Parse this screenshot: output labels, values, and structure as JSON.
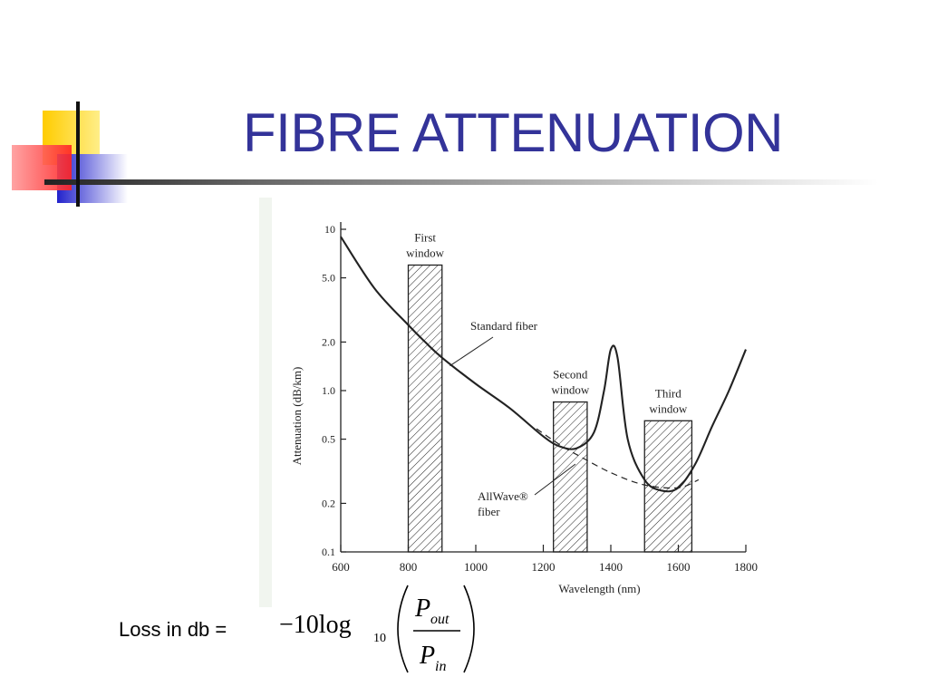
{
  "slide": {
    "title": "FIBRE ATTENUATION",
    "accent_color": "#333399",
    "decor_colors": [
      "#ffcc00",
      "#ff3333",
      "#3333cc"
    ]
  },
  "chart_data": {
    "type": "line",
    "xlabel": "Wavelength (nm)",
    "ylabel": "Attenuation (dB/km)",
    "xlim": [
      600,
      1800
    ],
    "ylim": [
      0.1,
      10
    ],
    "yscale": "log",
    "grid": false,
    "x_ticks": [
      "600",
      "800",
      "1000",
      "1200",
      "1400",
      "1600",
      "1800"
    ],
    "x_tick_values": [
      600,
      800,
      1000,
      1200,
      1400,
      1600,
      1800
    ],
    "y_ticks": [
      "0.1",
      "0.2",
      "0.5",
      "1.0",
      "2.0",
      "5.0",
      "10"
    ],
    "y_tick_values": [
      0.1,
      0.2,
      0.5,
      1.0,
      2.0,
      5.0,
      10
    ],
    "series": [
      {
        "name": "Standard fiber",
        "style": "solid",
        "x": [
          600,
          700,
          800,
          850,
          900,
          1000,
          1100,
          1200,
          1250,
          1300,
          1350,
          1380,
          1400,
          1420,
          1450,
          1500,
          1550,
          1600,
          1650,
          1700,
          1750,
          1800
        ],
        "y": [
          9.0,
          4.3,
          2.55,
          2.0,
          1.6,
          1.1,
          0.78,
          0.52,
          0.45,
          0.44,
          0.55,
          1.0,
          1.8,
          1.6,
          0.5,
          0.28,
          0.24,
          0.25,
          0.35,
          0.6,
          1.0,
          1.8
        ]
      },
      {
        "name": "AllWave® fiber",
        "style": "dashed",
        "x": [
          1180,
          1250,
          1300,
          1400,
          1500,
          1600,
          1660
        ],
        "y": [
          0.58,
          0.46,
          0.4,
          0.31,
          0.26,
          0.25,
          0.28
        ]
      }
    ],
    "bands": [
      {
        "label": [
          "First",
          "window"
        ],
        "x": [
          800,
          900
        ],
        "top": 6.0
      },
      {
        "label": [
          "Second",
          "window"
        ],
        "x": [
          1230,
          1330
        ],
        "top": 0.85
      },
      {
        "label": [
          "Third",
          "window"
        ],
        "x": [
          1500,
          1640
        ],
        "top": 0.65
      }
    ],
    "annotations": [
      {
        "text": [
          "Standard fiber"
        ],
        "target": [
          918,
          1.5
        ]
      },
      {
        "text": [
          "AllWave®",
          "fiber"
        ],
        "target": [
          1295,
          0.35
        ]
      }
    ]
  },
  "formula": {
    "label": "Loss in db =",
    "coefficient": "−10log",
    "base": "10",
    "numerator_var": "P",
    "numerator_sub": "out",
    "denominator_var": "P",
    "denominator_sub": "in"
  }
}
